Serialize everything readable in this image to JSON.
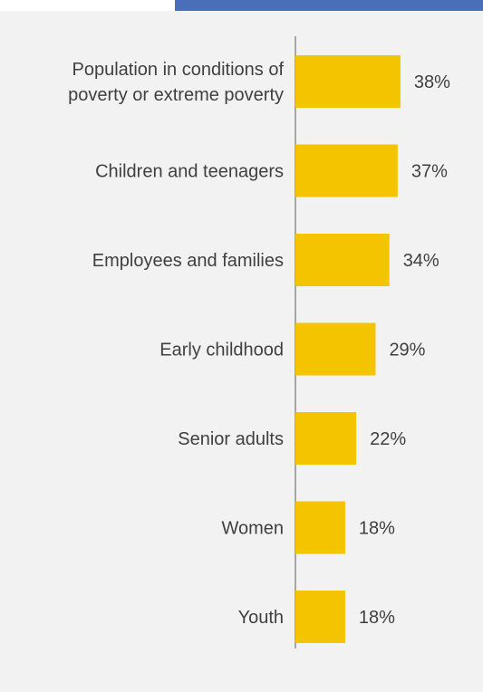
{
  "colors": {
    "background": "#f2f2f2",
    "bar": "#f5c400",
    "axis": "#8c8c8c",
    "text": "#404040",
    "top_bar": "#4a6eb8"
  },
  "chart_data": {
    "type": "bar",
    "orientation": "horizontal",
    "categories": [
      [
        "Population in conditions of",
        "poverty or extreme poverty"
      ],
      [
        "Children and teenagers"
      ],
      [
        "Employees and families"
      ],
      [
        "Early childhood"
      ],
      [
        "Senior adults"
      ],
      [
        "Women"
      ],
      [
        "Youth"
      ]
    ],
    "values": [
      38,
      37,
      34,
      29,
      22,
      18,
      18
    ],
    "value_labels": [
      "38%",
      "37%",
      "34%",
      "29%",
      "22%",
      "18%",
      "18%"
    ],
    "title": "",
    "xlabel": "",
    "ylabel": "",
    "xlim": [
      0,
      50
    ],
    "grid": false,
    "legend": "none"
  }
}
